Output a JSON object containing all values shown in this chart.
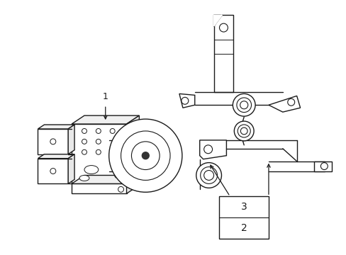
{
  "background_color": "#ffffff",
  "line_color": "#1a1a1a",
  "line_width": 1.0,
  "figsize": [
    4.89,
    3.6
  ],
  "dpi": 100,
  "label_1": "1",
  "label_2": "2",
  "label_3": "3"
}
